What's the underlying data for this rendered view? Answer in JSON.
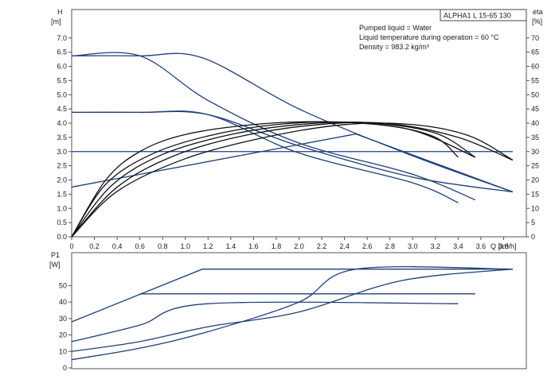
{
  "pump_label": "ALPHA1 L 15-65 130",
  "info_lines": [
    "Pumped liquid = Water",
    "Liquid temperature during operation = 60 °C",
    "Density = 983.2 kg/m³"
  ],
  "colors": {
    "system_curve": "#1f3f78",
    "efficiency_curve": "#111111",
    "frame": "#555555"
  },
  "chart_data": [
    {
      "type": "line",
      "title": "",
      "xlabel": "Q [m³/h]",
      "ylabel_lines": [
        "H",
        "[m]"
      ],
      "ylabel_right_lines": [
        "eta",
        "[%]"
      ],
      "xlim": [
        0,
        4.0
      ],
      "ylim": [
        0,
        8.0
      ],
      "ylim_right": [
        0,
        80
      ],
      "x_ticks": [
        "0",
        "0.2",
        "0.4",
        "0.6",
        "0.8",
        "1.0",
        "1.2",
        "1.4",
        "1.6",
        "1.8",
        "2.0",
        "2.2",
        "2.4",
        "2.6",
        "2.8",
        "3.0",
        "3.2",
        "3.4",
        "3.6",
        "3.8"
      ],
      "y_ticks": [
        "0.0",
        "0.5",
        "1.0",
        "1.5",
        "2.0",
        "2.5",
        "3.0",
        "3.5",
        "4.0",
        "4.5",
        "5.0",
        "5.5",
        "6.0",
        "6.5",
        "7.0"
      ],
      "y_ticks_right": [
        "0",
        "5",
        "10",
        "15",
        "20",
        "25",
        "30",
        "35",
        "40",
        "45",
        "50",
        "55",
        "60",
        "65",
        "70"
      ],
      "grid": false,
      "head_series": [
        {
          "points": [
            [
              0,
              6.37
            ],
            [
              0.6,
              6.37
            ],
            [
              1.15,
              6.3
            ],
            [
              2.0,
              4.5
            ],
            [
              3.0,
              2.85
            ],
            [
              3.88,
              1.58
            ]
          ]
        },
        {
          "points": [
            [
              0,
              6.37
            ],
            [
              0.6,
              6.37
            ],
            [
              1.2,
              4.8
            ],
            [
              2.0,
              3.3
            ],
            [
              3.0,
              2.2
            ],
            [
              3.55,
              1.3
            ]
          ]
        },
        {
          "points": [
            [
              0,
              4.38
            ],
            [
              0.6,
              4.38
            ],
            [
              1.2,
              4.3
            ],
            [
              2.0,
              3.2
            ],
            [
              3.0,
              2.1
            ],
            [
              3.88,
              1.58
            ]
          ]
        },
        {
          "points": [
            [
              0,
              4.38
            ],
            [
              0.6,
              4.38
            ],
            [
              1.2,
              4.3
            ],
            [
              2.0,
              2.95
            ],
            [
              3.0,
              1.9
            ],
            [
              3.4,
              1.2
            ]
          ]
        },
        {
          "points": [
            [
              0,
              3.0
            ],
            [
              3.88,
              3.0
            ]
          ]
        },
        {
          "points": [
            [
              0,
              1.75
            ],
            [
              2.5,
              3.62
            ],
            [
              3.88,
              1.58
            ]
          ]
        }
      ],
      "efficiency_series": [
        {
          "points": [
            [
              0,
              0
            ],
            [
              0.3,
              20
            ],
            [
              0.6,
              30
            ],
            [
              1.0,
              36
            ],
            [
              1.6,
              39.5
            ],
            [
              2.2,
              40.5
            ],
            [
              2.8,
              39
            ],
            [
              3.2,
              35
            ],
            [
              3.4,
              28
            ]
          ]
        },
        {
          "points": [
            [
              0,
              0
            ],
            [
              0.3,
              18.5
            ],
            [
              0.7,
              29
            ],
            [
              1.2,
              35.5
            ],
            [
              1.8,
              39.5
            ],
            [
              2.4,
              40.3
            ],
            [
              3.0,
              37.5
            ],
            [
              3.55,
              28
            ]
          ]
        },
        {
          "points": [
            [
              0,
              0
            ],
            [
              0.35,
              18
            ],
            [
              0.8,
              29
            ],
            [
              1.4,
              36
            ],
            [
              2.0,
              39.5
            ],
            [
              2.6,
              40.2
            ],
            [
              3.2,
              36.5
            ],
            [
              3.55,
              28
            ]
          ]
        },
        {
          "points": [
            [
              0,
              0
            ],
            [
              0.4,
              17.5
            ],
            [
              0.9,
              28.5
            ],
            [
              1.5,
              35.5
            ],
            [
              2.2,
              39.6
            ],
            [
              2.8,
              39.8
            ],
            [
              3.4,
              35
            ],
            [
              3.88,
              27
            ]
          ]
        },
        {
          "points": [
            [
              0,
              0
            ],
            [
              0.4,
              16
            ],
            [
              1.0,
              27.5
            ],
            [
              1.7,
              35
            ],
            [
              2.4,
              39.5
            ],
            [
              3.0,
              39.5
            ],
            [
              3.5,
              35.5
            ],
            [
              3.88,
              27
            ]
          ]
        }
      ]
    },
    {
      "type": "line",
      "title": "",
      "ylabel_lines": [
        "P1",
        "[W]"
      ],
      "xlim": [
        0,
        4.0
      ],
      "ylim": [
        0,
        70
      ],
      "y_ticks": [
        "0",
        "10",
        "20",
        "30",
        "40",
        "50"
      ],
      "grid": false,
      "series": [
        {
          "points": [
            [
              0,
              28
            ],
            [
              1.15,
              60
            ],
            [
              3.88,
              60
            ]
          ]
        },
        {
          "points": [
            [
              0,
              16
            ],
            [
              0.6,
              26
            ],
            [
              1.2,
              39
            ],
            [
              3.4,
              39
            ]
          ]
        },
        {
          "points": [
            [
              0,
              10
            ],
            [
              0.6,
              16
            ],
            [
              1.2,
              25
            ],
            [
              2.0,
              34
            ],
            [
              2.9,
              53
            ],
            [
              3.88,
              60
            ]
          ]
        },
        {
          "points": [
            [
              0,
              5
            ],
            [
              0.6,
              12
            ],
            [
              1.2,
              22
            ],
            [
              2.0,
              40
            ],
            [
              2.5,
              60
            ],
            [
              3.88,
              60
            ]
          ]
        },
        {
          "points": [
            [
              0.6,
              45
            ],
            [
              3.55,
              45
            ]
          ]
        }
      ]
    }
  ]
}
